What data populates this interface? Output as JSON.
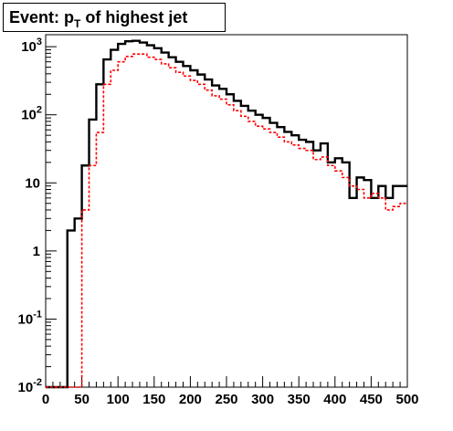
{
  "chart_data": {
    "type": "histogram",
    "title_main": "Event: p",
    "title_sub": "T",
    "title_rest": " of highest jet",
    "xlim": [
      0,
      500
    ],
    "ylim": [
      0.01,
      1500
    ],
    "ylog": true,
    "bin_width": 10,
    "x_ticks": [
      "0",
      "50",
      "100",
      "150",
      "200",
      "250",
      "300",
      "350",
      "400",
      "450",
      "500"
    ],
    "y_ticks": [
      {
        "base": "10",
        "exp": "-2",
        "value": 0.01
      },
      {
        "base": "10",
        "exp": "-1",
        "value": 0.1
      },
      {
        "base": "1",
        "exp": "",
        "value": 1
      },
      {
        "base": "10",
        "exp": "",
        "value": 10
      },
      {
        "base": "10",
        "exp": "2",
        "value": 100
      },
      {
        "base": "10",
        "exp": "3",
        "value": 1000
      }
    ],
    "series": [
      {
        "color": "#000000",
        "style": "solid",
        "edges": [
          0,
          10,
          20,
          30,
          40,
          50,
          60,
          70,
          80,
          90,
          100,
          110,
          120,
          130,
          140,
          150,
          160,
          170,
          180,
          190,
          200,
          210,
          220,
          230,
          240,
          250,
          260,
          270,
          280,
          290,
          300,
          310,
          320,
          330,
          340,
          350,
          360,
          370,
          380,
          390,
          400,
          410,
          420,
          430,
          440,
          450,
          460,
          470,
          480,
          490,
          500
        ],
        "values": [
          0.01,
          0.01,
          0.01,
          2,
          3,
          18,
          85,
          280,
          650,
          900,
          1100,
          1200,
          1220,
          1150,
          1050,
          950,
          820,
          700,
          600,
          520,
          450,
          390,
          330,
          270,
          240,
          200,
          160,
          135,
          115,
          100,
          90,
          76,
          66,
          56,
          50,
          43,
          40,
          30,
          38,
          20,
          23,
          20,
          6,
          12,
          11,
          6,
          9,
          6,
          9,
          9
        ]
      },
      {
        "color": "#ff0000",
        "style": "dashed",
        "edges": [
          0,
          10,
          20,
          30,
          40,
          50,
          60,
          70,
          80,
          90,
          100,
          110,
          120,
          130,
          140,
          150,
          160,
          170,
          180,
          190,
          200,
          210,
          220,
          230,
          240,
          250,
          260,
          270,
          280,
          290,
          300,
          310,
          320,
          330,
          340,
          350,
          360,
          370,
          380,
          390,
          400,
          410,
          420,
          430,
          440,
          450,
          460,
          470,
          480,
          490,
          500
        ],
        "values": [
          0.01,
          0.01,
          0.01,
          0.01,
          0.01,
          4,
          18,
          55,
          280,
          450,
          600,
          720,
          780,
          780,
          700,
          650,
          560,
          490,
          420,
          370,
          320,
          280,
          230,
          190,
          170,
          140,
          115,
          95,
          80,
          68,
          62,
          55,
          47,
          40,
          36,
          32,
          30,
          22,
          24,
          18,
          15,
          12,
          9,
          8,
          6,
          7,
          6,
          4,
          4.5,
          5
        ]
      }
    ]
  }
}
